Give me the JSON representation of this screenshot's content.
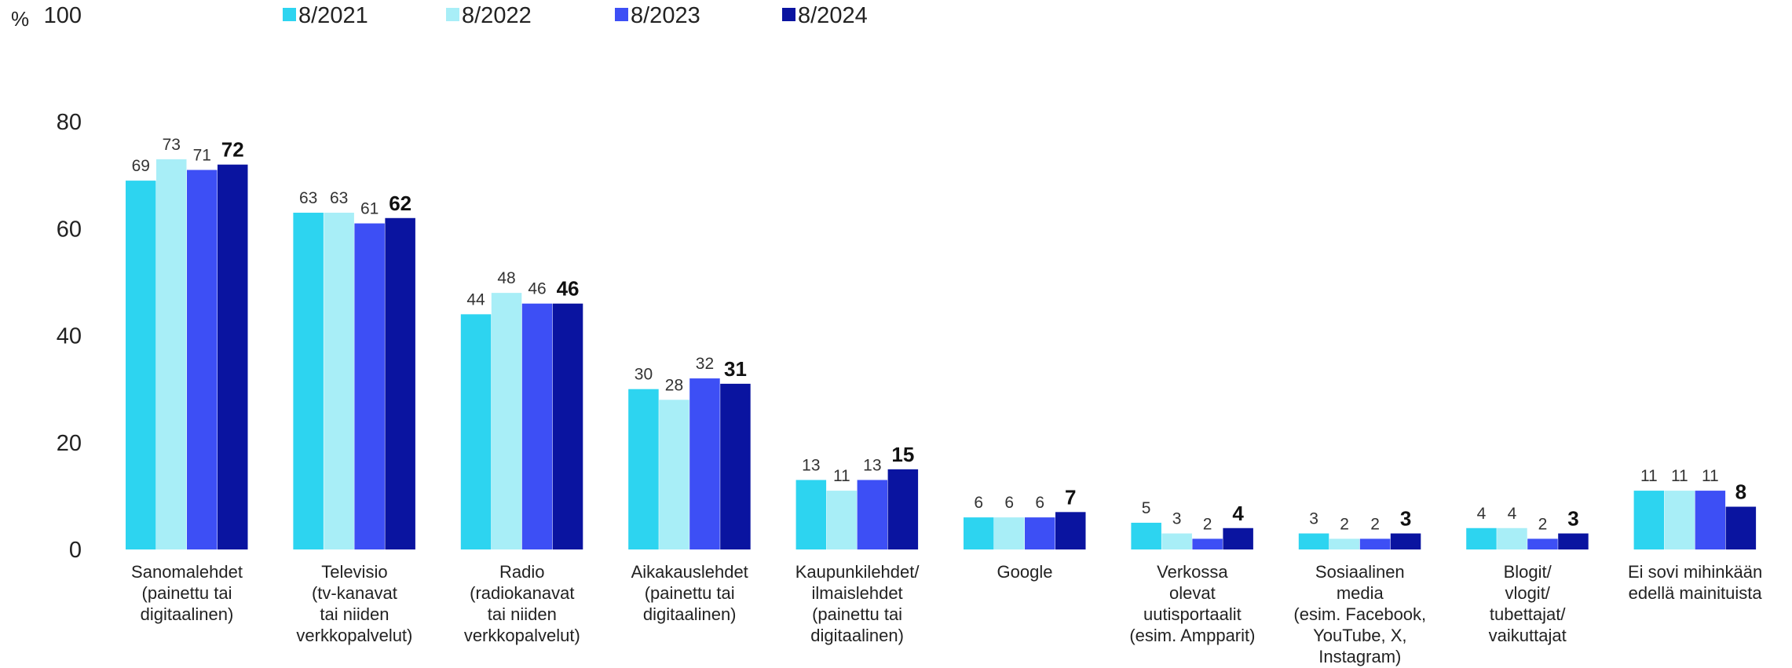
{
  "chart_data": {
    "type": "bar",
    "unit_label": "%",
    "ylim": [
      0,
      100
    ],
    "yticks": [
      0,
      20,
      40,
      60,
      80,
      100
    ],
    "grid": false,
    "legend_position": "top",
    "categories": [
      [
        "Sanomalehdet",
        "(painettu tai",
        "digitaalinen)"
      ],
      [
        "Televisio",
        "(tv-kanavat",
        "tai niiden",
        "verkkopalvelut)"
      ],
      [
        "Radio",
        "(radiokanavat",
        "tai niiden",
        "verkkopalvelut)"
      ],
      [
        "Aikakauslehdet",
        "(painettu tai",
        "digitaalinen)"
      ],
      [
        "Kaupunkilehdet/",
        "ilmaislehdet",
        "(painettu tai",
        "digitaalinen)"
      ],
      [
        "Google"
      ],
      [
        "Verkossa",
        "olevat",
        "uutisportaalit",
        "(esim. Ampparit)"
      ],
      [
        "Sosiaalinen",
        "media",
        "(esim. Facebook,",
        "YouTube, X,",
        "Instagram)"
      ],
      [
        "Blogit/",
        "vlogit/",
        "tubettajat/",
        "vaikuttajat"
      ],
      [
        "Ei sovi mihinkään",
        "edellä mainituista"
      ]
    ],
    "series": [
      {
        "name": "8/2021",
        "color": "#2dd4f0",
        "values": [
          69,
          63,
          44,
          30,
          13,
          6,
          5,
          3,
          4,
          11
        ]
      },
      {
        "name": "8/2022",
        "color": "#a8eef7",
        "values": [
          73,
          63,
          48,
          28,
          11,
          6,
          3,
          2,
          4,
          11
        ]
      },
      {
        "name": "8/2023",
        "color": "#3d4ff5",
        "values": [
          71,
          61,
          46,
          32,
          13,
          6,
          2,
          2,
          2,
          11
        ]
      },
      {
        "name": "8/2024",
        "color": "#0a14a0",
        "values": [
          72,
          62,
          46,
          31,
          15,
          7,
          4,
          3,
          3,
          8
        ]
      }
    ],
    "bold_series_index": 3
  }
}
